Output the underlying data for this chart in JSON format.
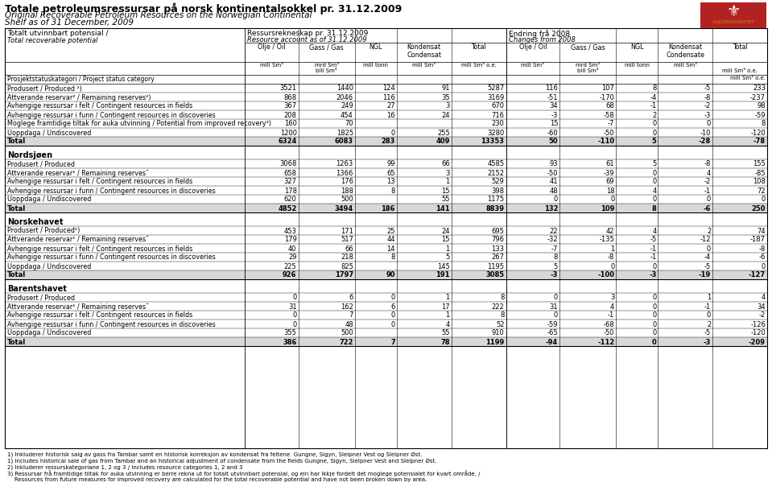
{
  "title_no": "Totale petroleumsressursar på norsk kontinentalsokkel pr. 31.12.2009",
  "title_en1": "Original Recoverable Petroleum Resources on the Norwegian Continental",
  "title_en2": "Shelf as of 31 December, 2009",
  "header_left": "Ressursrekneskap pr. 31.12.2009",
  "header_left2": "Resource account as of 31.12.2009",
  "header_right": "Endring frå 2008",
  "header_right2": "Changes from 2008",
  "row_label_col1": "Totalt utvinnbart potensial /",
  "row_label_col2": "Total recoverable potential",
  "row_label_proj": "Prosjektstatuskategori / Project status category",
  "col_headers": [
    "Olje / Oil",
    "Gass / Gas",
    "NGL",
    "Kondensat\nCondensat",
    "Total",
    "Olje / Oil",
    "Gass / Gas",
    "NGL",
    "Kondensat\nCondensate",
    "Total"
  ],
  "col_units_top": [
    "mill Sm³",
    "mrd Sm³",
    "mill tonn",
    "mill Sm³",
    "mill Sm³ o.e.",
    "mill Sm³",
    "mrd Sm³",
    "mill tonn",
    "mill Sm³",
    ""
  ],
  "col_units_bot": [
    "",
    "bill Sm³",
    "",
    "",
    "",
    "",
    "bill Sm³",
    "",
    "",
    "mill Sm³ o.e."
  ],
  "sections": [
    {
      "section_header": null,
      "rows": [
        {
          "label": "Produsert / Produced ¹)",
          "label_italic": "Produced ¹)",
          "values": [
            3521,
            1440,
            124,
            91,
            5287,
            116,
            107,
            8,
            -5,
            233
          ],
          "bold": false
        },
        {
          "label": "Attverande reservar² / Remaining reserves²)",
          "values": [
            868,
            2046,
            116,
            35,
            3169,
            -51,
            -170,
            -4,
            -8,
            -237
          ],
          "bold": false
        },
        {
          "label": "Avhengige ressursar i felt / Contingent resources in fields",
          "values": [
            367,
            249,
            27,
            3,
            670,
            34,
            68,
            -1,
            -2,
            98
          ],
          "bold": false
        },
        {
          "label": "Avhengige ressursar i funn / Contingent resources in discoveries",
          "values": [
            208,
            454,
            16,
            24,
            716,
            -3,
            -58,
            2,
            -3,
            -59
          ],
          "bold": false
        },
        {
          "label": "Moglege framtidige tiltak for auka utvinning / Potential from improved recovery³)",
          "values": [
            160,
            70,
            null,
            null,
            230,
            15,
            -7,
            0,
            0,
            8
          ],
          "bold": false
        },
        {
          "label": "Uoppdaga / Undiscovered",
          "values": [
            1200,
            1825,
            0,
            255,
            3280,
            -60,
            -50,
            0,
            -10,
            -120
          ],
          "bold": false
        },
        {
          "label": "Total",
          "values": [
            6324,
            6083,
            283,
            409,
            13353,
            50,
            -110,
            5,
            -28,
            -78
          ],
          "bold": true
        }
      ]
    },
    {
      "section_header": "Nordsjøen",
      "rows": [
        {
          "label": "Produsert / Produced",
          "values": [
            3068,
            1263,
            99,
            66,
            4585,
            93,
            61,
            5,
            -8,
            155
          ],
          "bold": false
        },
        {
          "label": "Attverande reservar¹ / Remaining reservesˉ",
          "values": [
            658,
            1366,
            65,
            3,
            2152,
            -50,
            -39,
            0,
            4,
            -85
          ],
          "bold": false
        },
        {
          "label": "Avhengige ressursar i felt / Contingent resources in fields",
          "values": [
            327,
            176,
            13,
            1,
            529,
            41,
            69,
            0,
            -2,
            108
          ],
          "bold": false
        },
        {
          "label": "Avhengige ressursar i funn / Contingent resources in discoveries",
          "values": [
            178,
            188,
            8,
            15,
            398,
            48,
            18,
            4,
            -1,
            72
          ],
          "bold": false
        },
        {
          "label": "Uoppdaga / Undiscovered",
          "values": [
            620,
            500,
            null,
            55,
            1175,
            0,
            0,
            0,
            0,
            0
          ],
          "bold": false
        },
        {
          "label": "Total",
          "values": [
            4852,
            3494,
            186,
            141,
            8839,
            132,
            109,
            8,
            -6,
            250
          ],
          "bold": true
        }
      ]
    },
    {
      "section_header": "Norskehavet",
      "rows": [
        {
          "label": "Produsert / Produced¹)",
          "values": [
            453,
            171,
            25,
            24,
            695,
            22,
            42,
            4,
            2,
            74
          ],
          "bold": false
        },
        {
          "label": "Attverande reservar¹ / Remaining reservesˉ",
          "values": [
            179,
            517,
            44,
            15,
            796,
            -32,
            -135,
            -5,
            -12,
            -187
          ],
          "bold": false
        },
        {
          "label": "Avhengige ressursar i felt / Contingent resources in fields",
          "values": [
            40,
            66,
            14,
            1,
            133,
            -7,
            1,
            -1,
            0,
            -8
          ],
          "bold": false
        },
        {
          "label": "Avhengige ressursar i funn / Contingent resources in discoveries",
          "values": [
            29,
            218,
            8,
            5,
            267,
            8,
            -8,
            -1,
            -4,
            -6
          ],
          "bold": false
        },
        {
          "label": "Uoppdaga / Undiscovered",
          "values": [
            225,
            825,
            null,
            145,
            1195,
            5,
            0,
            0,
            -5,
            0
          ],
          "bold": false
        },
        {
          "label": "Total",
          "values": [
            926,
            1797,
            90,
            191,
            3085,
            -3,
            -100,
            -3,
            -19,
            -127
          ],
          "bold": true
        }
      ]
    },
    {
      "section_header": "Barentshavet",
      "rows": [
        {
          "label": "Produsert / Produced",
          "values": [
            0,
            6,
            0,
            1,
            8,
            0,
            3,
            0,
            1,
            4
          ],
          "bold": false
        },
        {
          "label": "Attverande reservar¹ / Remaining reservesˉ",
          "values": [
            31,
            162,
            6,
            17,
            222,
            31,
            4,
            0,
            -1,
            34
          ],
          "bold": false
        },
        {
          "label": "Avhengige ressursar i felt / Contingent resources in fields",
          "values": [
            0,
            7,
            0,
            1,
            8,
            0,
            -1,
            0,
            0,
            -2
          ],
          "bold": false
        },
        {
          "label": "Avhengige ressursar i funn / Contingent resources in discoveries",
          "values": [
            0,
            48,
            0,
            4,
            52,
            -59,
            -68,
            0,
            2,
            -126
          ],
          "bold": false
        },
        {
          "label": "Uoppdaga / Undiscovered",
          "values": [
            355,
            500,
            null,
            55,
            910,
            -65,
            -50,
            0,
            -5,
            -120
          ],
          "bold": false
        },
        {
          "label": "Total",
          "values": [
            386,
            722,
            7,
            78,
            1199,
            -94,
            -112,
            0,
            -3,
            -209
          ],
          "bold": true
        }
      ]
    }
  ],
  "footnotes": [
    "1) Inkluderer historisk salg av gass fra Tambar samt en historisk korreksjon av kondensat fra feltene  Gungne, Sigyn, Sleipner Vest og Sleipner Øst.",
    "1) Includes historical sale of gas from Tambar and an historical adjustment of condensate from the fields Gungne, Sigyn, Sleipner Vest and Sleipner Øst.",
    "2) Inkluderer ressurskategoriane 1, 2 og 3 / Includes resource categories 1, 2 and 3",
    "3) Ressursar frå framtidige tiltak for auka utvinning er berre rekna ut for totalt utvinnbart potensial, og ein har ikkje fordelt det moglege potensialet for kvart område. /",
    "    Resources from future measures for improved recovery are calculated for the total recoverable potential and have not been broken down by area."
  ],
  "bg_color": "#ffffff",
  "total_row_color": "#d8d8d8",
  "header_border_color": "#000000",
  "table_border_lw": 0.6
}
